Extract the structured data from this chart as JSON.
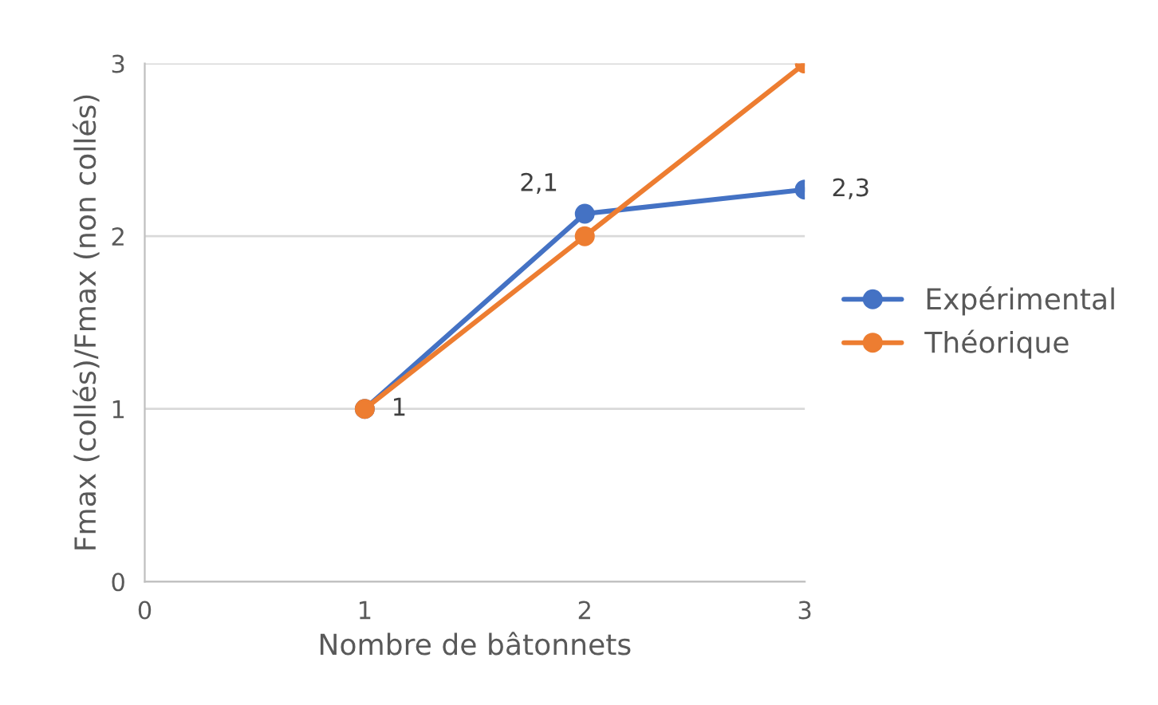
{
  "chart_data": {
    "type": "line",
    "xlabel": "Nombre de bâtonnets",
    "ylabel": "Fmax (collés)/Fmax (non collés)",
    "xlim": [
      0,
      3
    ],
    "xticks": [
      0,
      1,
      2,
      3
    ],
    "ylim": [
      0,
      3
    ],
    "yticks": [
      0,
      1,
      2,
      3
    ],
    "grid": "y",
    "legend": "right",
    "marker": "circle",
    "line_style": "solid",
    "series": [
      {
        "name": "Expérimental",
        "color": "#4472c4",
        "x": [
          1,
          2,
          3
        ],
        "values": [
          1,
          2.13,
          2.27
        ],
        "value_labels": [
          "1",
          "2,1",
          "2,3"
        ]
      },
      {
        "name": "Théorique",
        "color": "#ed7d31",
        "x": [
          1,
          2,
          3
        ],
        "values": [
          1,
          2,
          3
        ]
      }
    ]
  }
}
